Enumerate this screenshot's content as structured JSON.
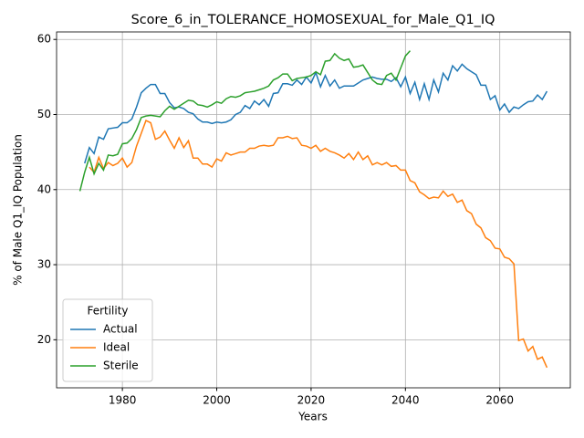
{
  "chart_data": {
    "type": "line",
    "title": "Score_6_in_TOLERANCE_HOMOSEXUAL_for_Male_Q1_IQ",
    "xlabel": "Years",
    "ylabel": "% of Male Q1_IQ Population",
    "x": [
      1971,
      1972,
      1973,
      1974,
      1975,
      1976,
      1977,
      1978,
      1979,
      1980,
      1981,
      1982,
      1983,
      1984,
      1985,
      1986,
      1987,
      1988,
      1989,
      1990,
      1991,
      1992,
      1993,
      1994,
      1995,
      1996,
      1997,
      1998,
      1999,
      2000,
      2001,
      2002,
      2003,
      2004,
      2005,
      2006,
      2007,
      2008,
      2009,
      2010,
      2011,
      2012,
      2013,
      2014,
      2015,
      2016,
      2017,
      2018,
      2019,
      2020,
      2021,
      2022,
      2023,
      2024,
      2025,
      2026,
      2027,
      2028,
      2029,
      2030,
      2031,
      2032,
      2033,
      2034,
      2035,
      2036,
      2037,
      2038,
      2039,
      2040,
      2041,
      2042,
      2043,
      2044,
      2045,
      2046,
      2047,
      2048,
      2049,
      2050,
      2051,
      2052,
      2053,
      2054,
      2055,
      2056,
      2057,
      2058,
      2059,
      2060,
      2061,
      2062,
      2063,
      2064,
      2065,
      2066,
      2067,
      2068,
      2069,
      2070
    ],
    "series": [
      {
        "name": "Actual",
        "color": "#1f77b4",
        "values": [
          null,
          43.5,
          45.6,
          44.8,
          47.0,
          46.7,
          48.1,
          48.2,
          48.3,
          48.9,
          48.9,
          49.4,
          51.0,
          52.9,
          53.5,
          54.0,
          54.0,
          52.8,
          52.8,
          51.6,
          50.9,
          51.0,
          50.8,
          50.3,
          50.1,
          49.4,
          49.0,
          49.0,
          48.8,
          49.0,
          48.9,
          49.0,
          49.3,
          50.0,
          50.3,
          51.2,
          50.8,
          51.8,
          51.3,
          52.0,
          51.1,
          52.8,
          52.9,
          54.1,
          54.1,
          53.9,
          54.6,
          54.0,
          55.0,
          54.2,
          55.6,
          53.7,
          55.2,
          53.8,
          54.6,
          53.5,
          53.8,
          53.8,
          53.8,
          54.2,
          54.6,
          54.8,
          55.0,
          54.8,
          54.7,
          54.7,
          54.4,
          54.9,
          53.7,
          55.0,
          52.8,
          54.3,
          52.0,
          54.1,
          52.0,
          54.6,
          53.0,
          55.5,
          54.6,
          56.5,
          55.8,
          56.7,
          56.1,
          55.7,
          55.3,
          53.9,
          53.9,
          52.0,
          52.5,
          50.6,
          51.4,
          50.3,
          51.0,
          50.8,
          51.3,
          51.7,
          51.8,
          52.6,
          52.0,
          53.1
        ]
      },
      {
        "name": "Ideal",
        "color": "#ff7f0e",
        "values": [
          null,
          null,
          43.0,
          42.3,
          44.3,
          42.8,
          43.6,
          43.2,
          43.5,
          44.2,
          43.0,
          43.6,
          45.8,
          47.5,
          49.2,
          48.9,
          46.7,
          47.0,
          47.8,
          46.6,
          45.5,
          46.9,
          45.6,
          46.5,
          44.2,
          44.2,
          43.4,
          43.4,
          43.0,
          44.1,
          43.8,
          44.9,
          44.6,
          44.8,
          45.0,
          45.0,
          45.5,
          45.5,
          45.8,
          45.9,
          45.8,
          45.9,
          46.9,
          46.9,
          47.1,
          46.8,
          46.9,
          45.9,
          45.8,
          45.5,
          45.9,
          45.1,
          45.5,
          45.1,
          44.9,
          44.6,
          44.2,
          44.8,
          44.0,
          45.0,
          44.0,
          44.5,
          43.3,
          43.6,
          43.3,
          43.6,
          43.1,
          43.2,
          42.6,
          42.6,
          41.2,
          40.9,
          39.7,
          39.3,
          38.8,
          39.0,
          38.9,
          39.8,
          39.1,
          39.4,
          38.3,
          38.6,
          37.2,
          36.8,
          35.4,
          34.9,
          33.6,
          33.2,
          32.2,
          32.1,
          31.0,
          30.8,
          30.1,
          19.9,
          20.1,
          18.5,
          19.1,
          17.4,
          17.7,
          16.3
        ]
      },
      {
        "name": "Sterile",
        "color": "#2ca02c",
        "values": [
          39.8,
          42.3,
          44.3,
          42.1,
          43.5,
          42.6,
          44.6,
          44.5,
          44.7,
          46.1,
          46.2,
          46.8,
          48.0,
          49.6,
          49.8,
          49.9,
          49.8,
          49.7,
          50.5,
          51.1,
          50.7,
          51.1,
          51.5,
          51.9,
          51.8,
          51.3,
          51.2,
          51.0,
          51.3,
          51.7,
          51.5,
          52.1,
          52.4,
          52.3,
          52.5,
          52.9,
          53.0,
          53.1,
          53.3,
          53.5,
          53.8,
          54.6,
          54.9,
          55.4,
          55.4,
          54.5,
          54.8,
          54.9,
          55.0,
          55.2,
          55.7,
          55.3,
          57.1,
          57.2,
          58.1,
          57.5,
          57.2,
          57.4,
          56.3,
          56.4,
          56.6,
          55.6,
          54.6,
          54.1,
          54.0,
          55.2,
          55.5,
          54.6,
          56.2,
          57.8,
          58.5,
          null,
          null,
          null,
          null,
          null,
          null,
          null,
          null,
          null,
          null,
          null,
          null,
          null,
          null,
          null,
          null,
          null,
          null,
          null,
          null,
          null,
          null,
          null,
          null,
          null,
          null,
          null,
          null,
          null
        ]
      }
    ],
    "xlim": [
      1966.05,
      2074.95
    ],
    "ylim": [
      13.6,
      61.0
    ],
    "xticks": [
      1980,
      2000,
      2020,
      2040,
      2060
    ],
    "yticks": [
      20,
      30,
      40,
      50,
      60
    ],
    "grid": true,
    "legend_title": "Fertility",
    "legend_loc": "lower left"
  }
}
